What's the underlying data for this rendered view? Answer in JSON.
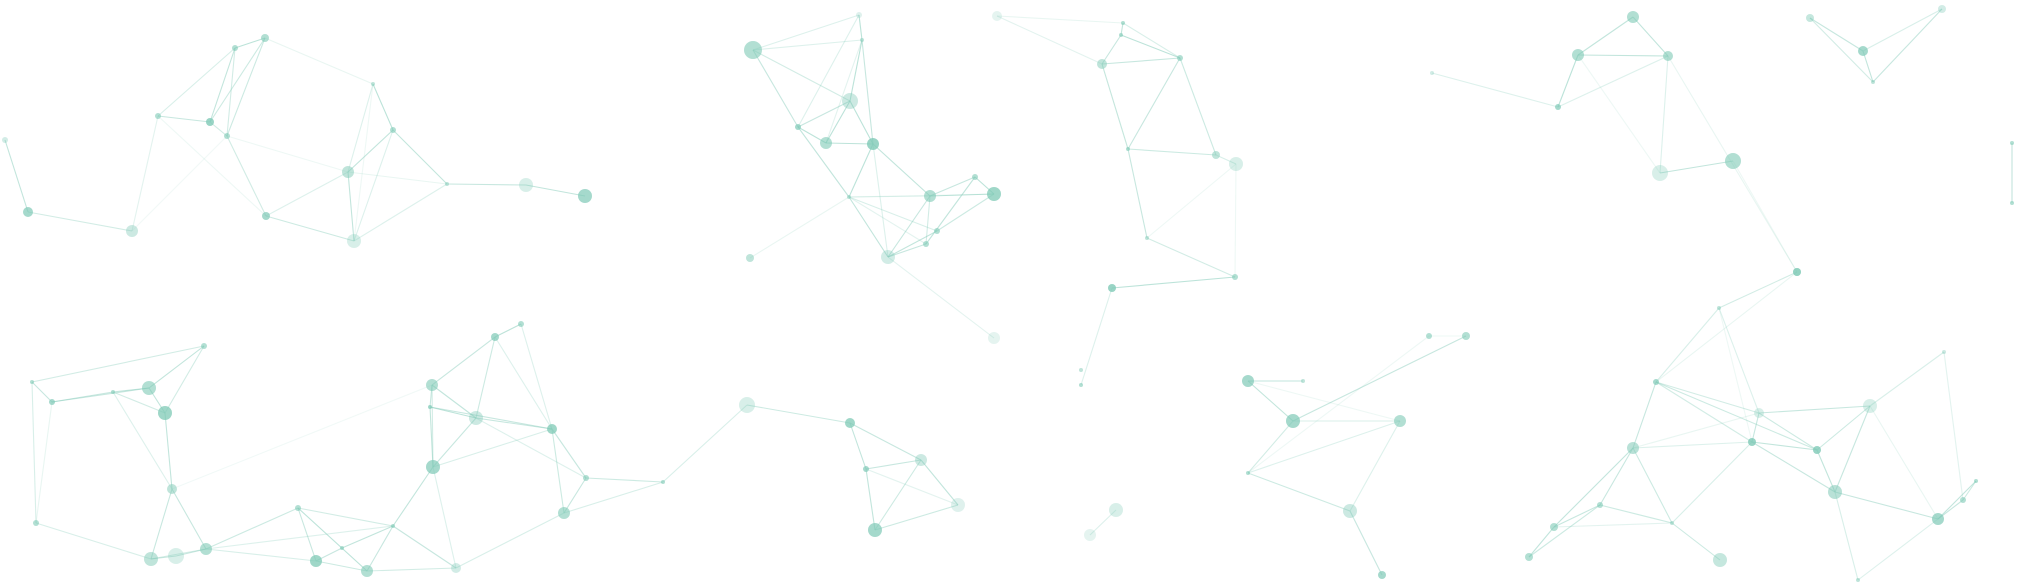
{
  "background": "#ffffff",
  "colors": {
    "node": "#7fc9b6",
    "node_strong": "#6bbfaa",
    "edge": "#8fd0bf"
  },
  "icon": "network-constellation-graphic"
}
